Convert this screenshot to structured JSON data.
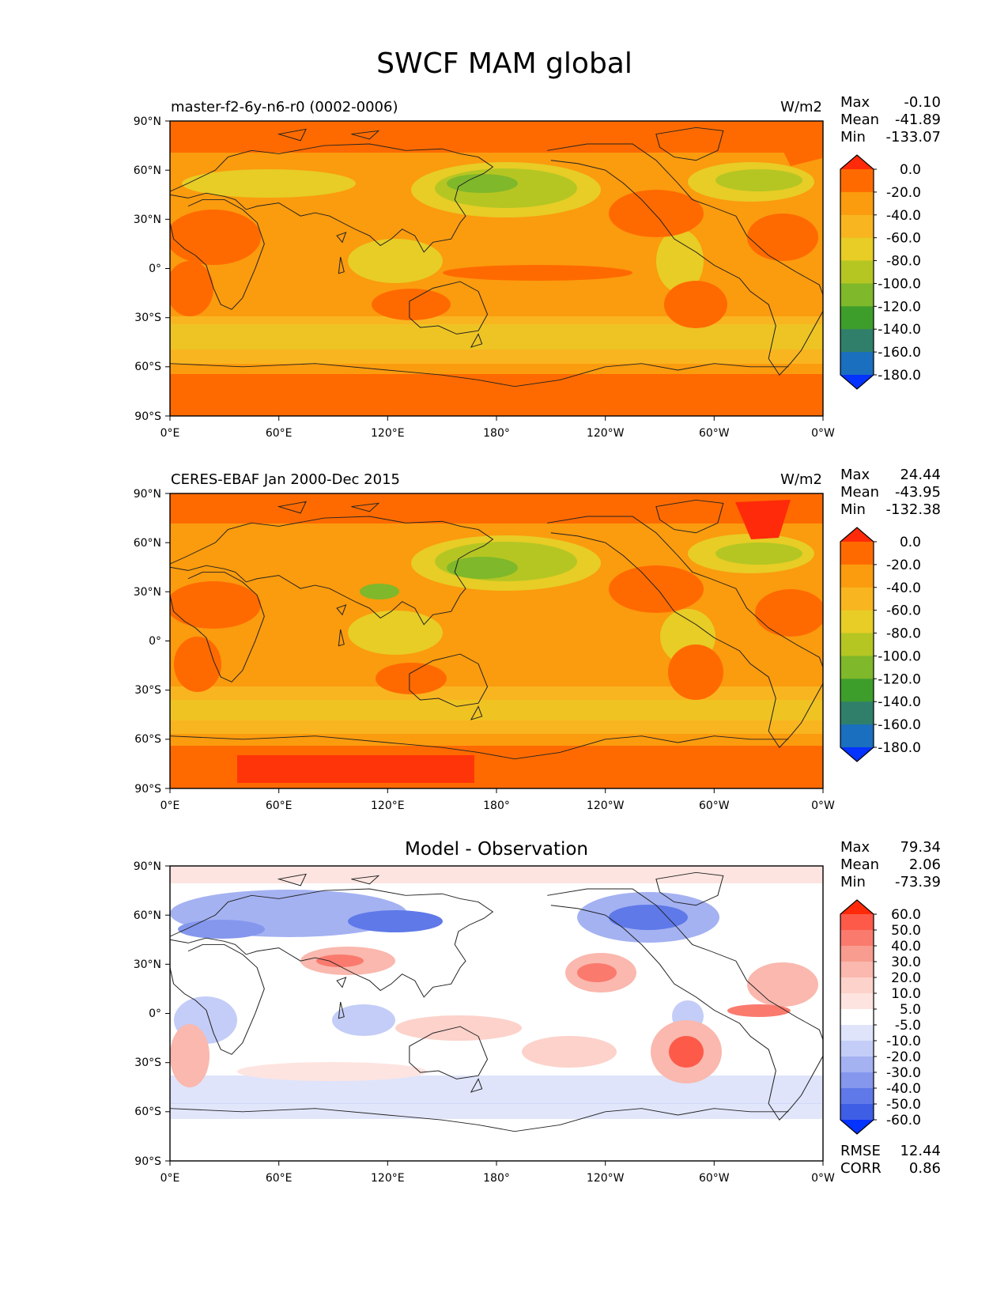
{
  "figure": {
    "title": "SWCF MAM global"
  },
  "panels": [
    {
      "id": "model",
      "left_title": "master-f2-6y-n6-r0 (0002-0006)",
      "center_title": "",
      "units": "W/m2",
      "stats": {
        "max_label": "Max",
        "max": "-0.10",
        "mean_label": "Mean",
        "mean": "-41.89",
        "min_label": "Min",
        "min": "-133.07"
      },
      "colorbar_labels": [
        "0.0",
        "-20.0",
        "-40.0",
        "-60.0",
        "-80.0",
        "-100.0",
        "-120.0",
        "-140.0",
        "-160.0",
        "-180.0"
      ]
    },
    {
      "id": "observation",
      "left_title": "CERES-EBAF Jan 2000-Dec 2015",
      "center_title": "",
      "units": "W/m2",
      "stats": {
        "max_label": "Max",
        "max": "24.44",
        "mean_label": "Mean",
        "mean": "-43.95",
        "min_label": "Min",
        "min": "-132.38"
      },
      "colorbar_labels": [
        "0.0",
        "-20.0",
        "-40.0",
        "-60.0",
        "-80.0",
        "-100.0",
        "-120.0",
        "-140.0",
        "-160.0",
        "-180.0"
      ]
    },
    {
      "id": "difference",
      "left_title": "",
      "center_title": "Model - Observation",
      "units": "",
      "stats": {
        "max_label": "Max",
        "max": "79.34",
        "mean_label": "Mean",
        "mean": "2.06",
        "min_label": "Min",
        "min": "-73.39"
      },
      "colorbar_labels": [
        "60.0",
        "50.0",
        "40.0",
        "30.0",
        "20.0",
        "10.0",
        "5.0",
        "-5.0",
        "-10.0",
        "-20.0",
        "-30.0",
        "-40.0",
        "-50.0",
        "-60.0"
      ],
      "metrics": {
        "rmse_label": "RMSE",
        "rmse": "12.44",
        "corr_label": "CORR",
        "corr": "0.86"
      }
    }
  ],
  "axes": {
    "lat_ticks": [
      "90°N",
      "60°N",
      "30°N",
      "0°",
      "30°S",
      "60°S",
      "90°S"
    ],
    "lon_ticks": [
      "0°E",
      "60°E",
      "120°E",
      "180°",
      "120°W",
      "60°W",
      "0°W"
    ]
  },
  "colors": {
    "full_field_scale": [
      "#ff2a0a",
      "#ff6a00",
      "#fb9b0e",
      "#f9b520",
      "#e7cd25",
      "#b5c623",
      "#7fb82a",
      "#3e9e2b",
      "#2f7f6a",
      "#1a6fbf",
      "#0432ff"
    ],
    "diff_scale": [
      "#ff2a0a",
      "#fd5a4a",
      "#fa7a6e",
      "#f89c90",
      "#fab8ae",
      "#fcd2cb",
      "#fde4e0",
      "#ffffff",
      "#dfe4fb",
      "#c3cdf7",
      "#a4b2f2",
      "#8497ed",
      "#5f79e8",
      "#3e5ee6",
      "#0432ff"
    ],
    "coastline": "#222222"
  }
}
